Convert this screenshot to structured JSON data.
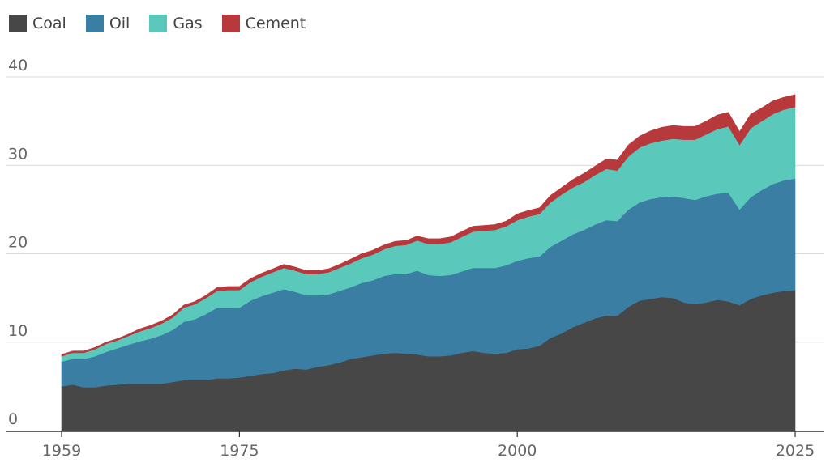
{
  "chart_data": {
    "type": "area",
    "stacked": true,
    "title": "",
    "xlabel": "",
    "ylabel": "",
    "x": [
      1959,
      1960,
      1961,
      1962,
      1963,
      1964,
      1965,
      1966,
      1967,
      1968,
      1969,
      1970,
      1971,
      1972,
      1973,
      1974,
      1975,
      1976,
      1977,
      1978,
      1979,
      1980,
      1981,
      1982,
      1983,
      1984,
      1985,
      1986,
      1987,
      1988,
      1989,
      1990,
      1991,
      1992,
      1993,
      1994,
      1995,
      1996,
      1997,
      1998,
      1999,
      2000,
      2001,
      2002,
      2003,
      2004,
      2005,
      2006,
      2007,
      2008,
      2009,
      2010,
      2011,
      2012,
      2013,
      2014,
      2015,
      2016,
      2017,
      2018,
      2019,
      2020,
      2021,
      2022,
      2023,
      2024,
      2025
    ],
    "xlim": [
      1959,
      2025
    ],
    "ylim": [
      0,
      40
    ],
    "x_ticks": [
      1959,
      1975,
      2000,
      2025
    ],
    "y_ticks": [
      0,
      10,
      20,
      30,
      40
    ],
    "grid": true,
    "legend_position": "top-left",
    "series": [
      {
        "name": "Coal",
        "color": "#474747",
        "values": [
          5.0,
          5.2,
          4.9,
          4.9,
          5.1,
          5.2,
          5.3,
          5.3,
          5.3,
          5.3,
          5.5,
          5.7,
          5.7,
          5.7,
          5.9,
          5.9,
          6.0,
          6.2,
          6.4,
          6.5,
          6.8,
          7.0,
          6.9,
          7.2,
          7.4,
          7.7,
          8.1,
          8.3,
          8.5,
          8.7,
          8.8,
          8.7,
          8.6,
          8.4,
          8.4,
          8.5,
          8.8,
          9.0,
          8.8,
          8.7,
          8.8,
          9.2,
          9.3,
          9.6,
          10.5,
          11.0,
          11.7,
          12.2,
          12.7,
          13.0,
          13.0,
          14.0,
          14.7,
          14.9,
          15.1,
          15.0,
          14.5,
          14.3,
          14.5,
          14.8,
          14.6,
          14.2,
          14.9,
          15.3,
          15.6,
          15.8,
          15.9
        ]
      },
      {
        "name": "Oil",
        "color": "#3b7ea4",
        "values": [
          2.8,
          2.9,
          3.2,
          3.5,
          3.8,
          4.1,
          4.4,
          4.8,
          5.1,
          5.5,
          5.9,
          6.6,
          6.9,
          7.5,
          8.0,
          8.0,
          7.9,
          8.5,
          8.8,
          9.1,
          9.2,
          8.7,
          8.4,
          8.1,
          8.0,
          8.1,
          8.1,
          8.4,
          8.5,
          8.8,
          8.9,
          9.0,
          9.5,
          9.2,
          9.1,
          9.1,
          9.2,
          9.4,
          9.6,
          9.7,
          9.9,
          10.0,
          10.2,
          10.1,
          10.3,
          10.5,
          10.5,
          10.5,
          10.6,
          10.8,
          10.7,
          11.0,
          11.1,
          11.3,
          11.3,
          11.5,
          11.8,
          11.8,
          12.0,
          12.0,
          12.3,
          10.8,
          11.5,
          11.9,
          12.3,
          12.5,
          12.6
        ]
      },
      {
        "name": "Gas",
        "color": "#5ac8bb",
        "values": [
          0.6,
          0.7,
          0.7,
          0.8,
          0.9,
          0.9,
          1.0,
          1.1,
          1.2,
          1.3,
          1.4,
          1.6,
          1.7,
          1.8,
          1.9,
          2.0,
          2.0,
          2.1,
          2.2,
          2.3,
          2.4,
          2.4,
          2.4,
          2.4,
          2.5,
          2.6,
          2.7,
          2.8,
          2.9,
          3.0,
          3.2,
          3.3,
          3.4,
          3.5,
          3.6,
          3.7,
          3.9,
          4.1,
          4.2,
          4.3,
          4.4,
          4.6,
          4.7,
          4.8,
          5.0,
          5.2,
          5.3,
          5.4,
          5.6,
          5.8,
          5.7,
          6.0,
          6.2,
          6.3,
          6.4,
          6.5,
          6.6,
          6.8,
          7.0,
          7.3,
          7.5,
          7.3,
          7.8,
          7.8,
          7.9,
          8.0,
          8.1
        ]
      },
      {
        "name": "Cement",
        "color": "#b8393c",
        "values": [
          0.2,
          0.2,
          0.2,
          0.2,
          0.2,
          0.2,
          0.2,
          0.3,
          0.3,
          0.3,
          0.3,
          0.3,
          0.3,
          0.3,
          0.4,
          0.4,
          0.4,
          0.4,
          0.4,
          0.4,
          0.4,
          0.4,
          0.4,
          0.4,
          0.4,
          0.4,
          0.5,
          0.5,
          0.5,
          0.5,
          0.5,
          0.5,
          0.5,
          0.6,
          0.6,
          0.6,
          0.6,
          0.6,
          0.6,
          0.6,
          0.6,
          0.7,
          0.7,
          0.7,
          0.8,
          0.8,
          0.9,
          1.0,
          1.0,
          1.1,
          1.2,
          1.3,
          1.3,
          1.4,
          1.5,
          1.5,
          1.5,
          1.5,
          1.5,
          1.6,
          1.6,
          1.5,
          1.6,
          1.5,
          1.5,
          1.4,
          1.4
        ]
      }
    ]
  }
}
